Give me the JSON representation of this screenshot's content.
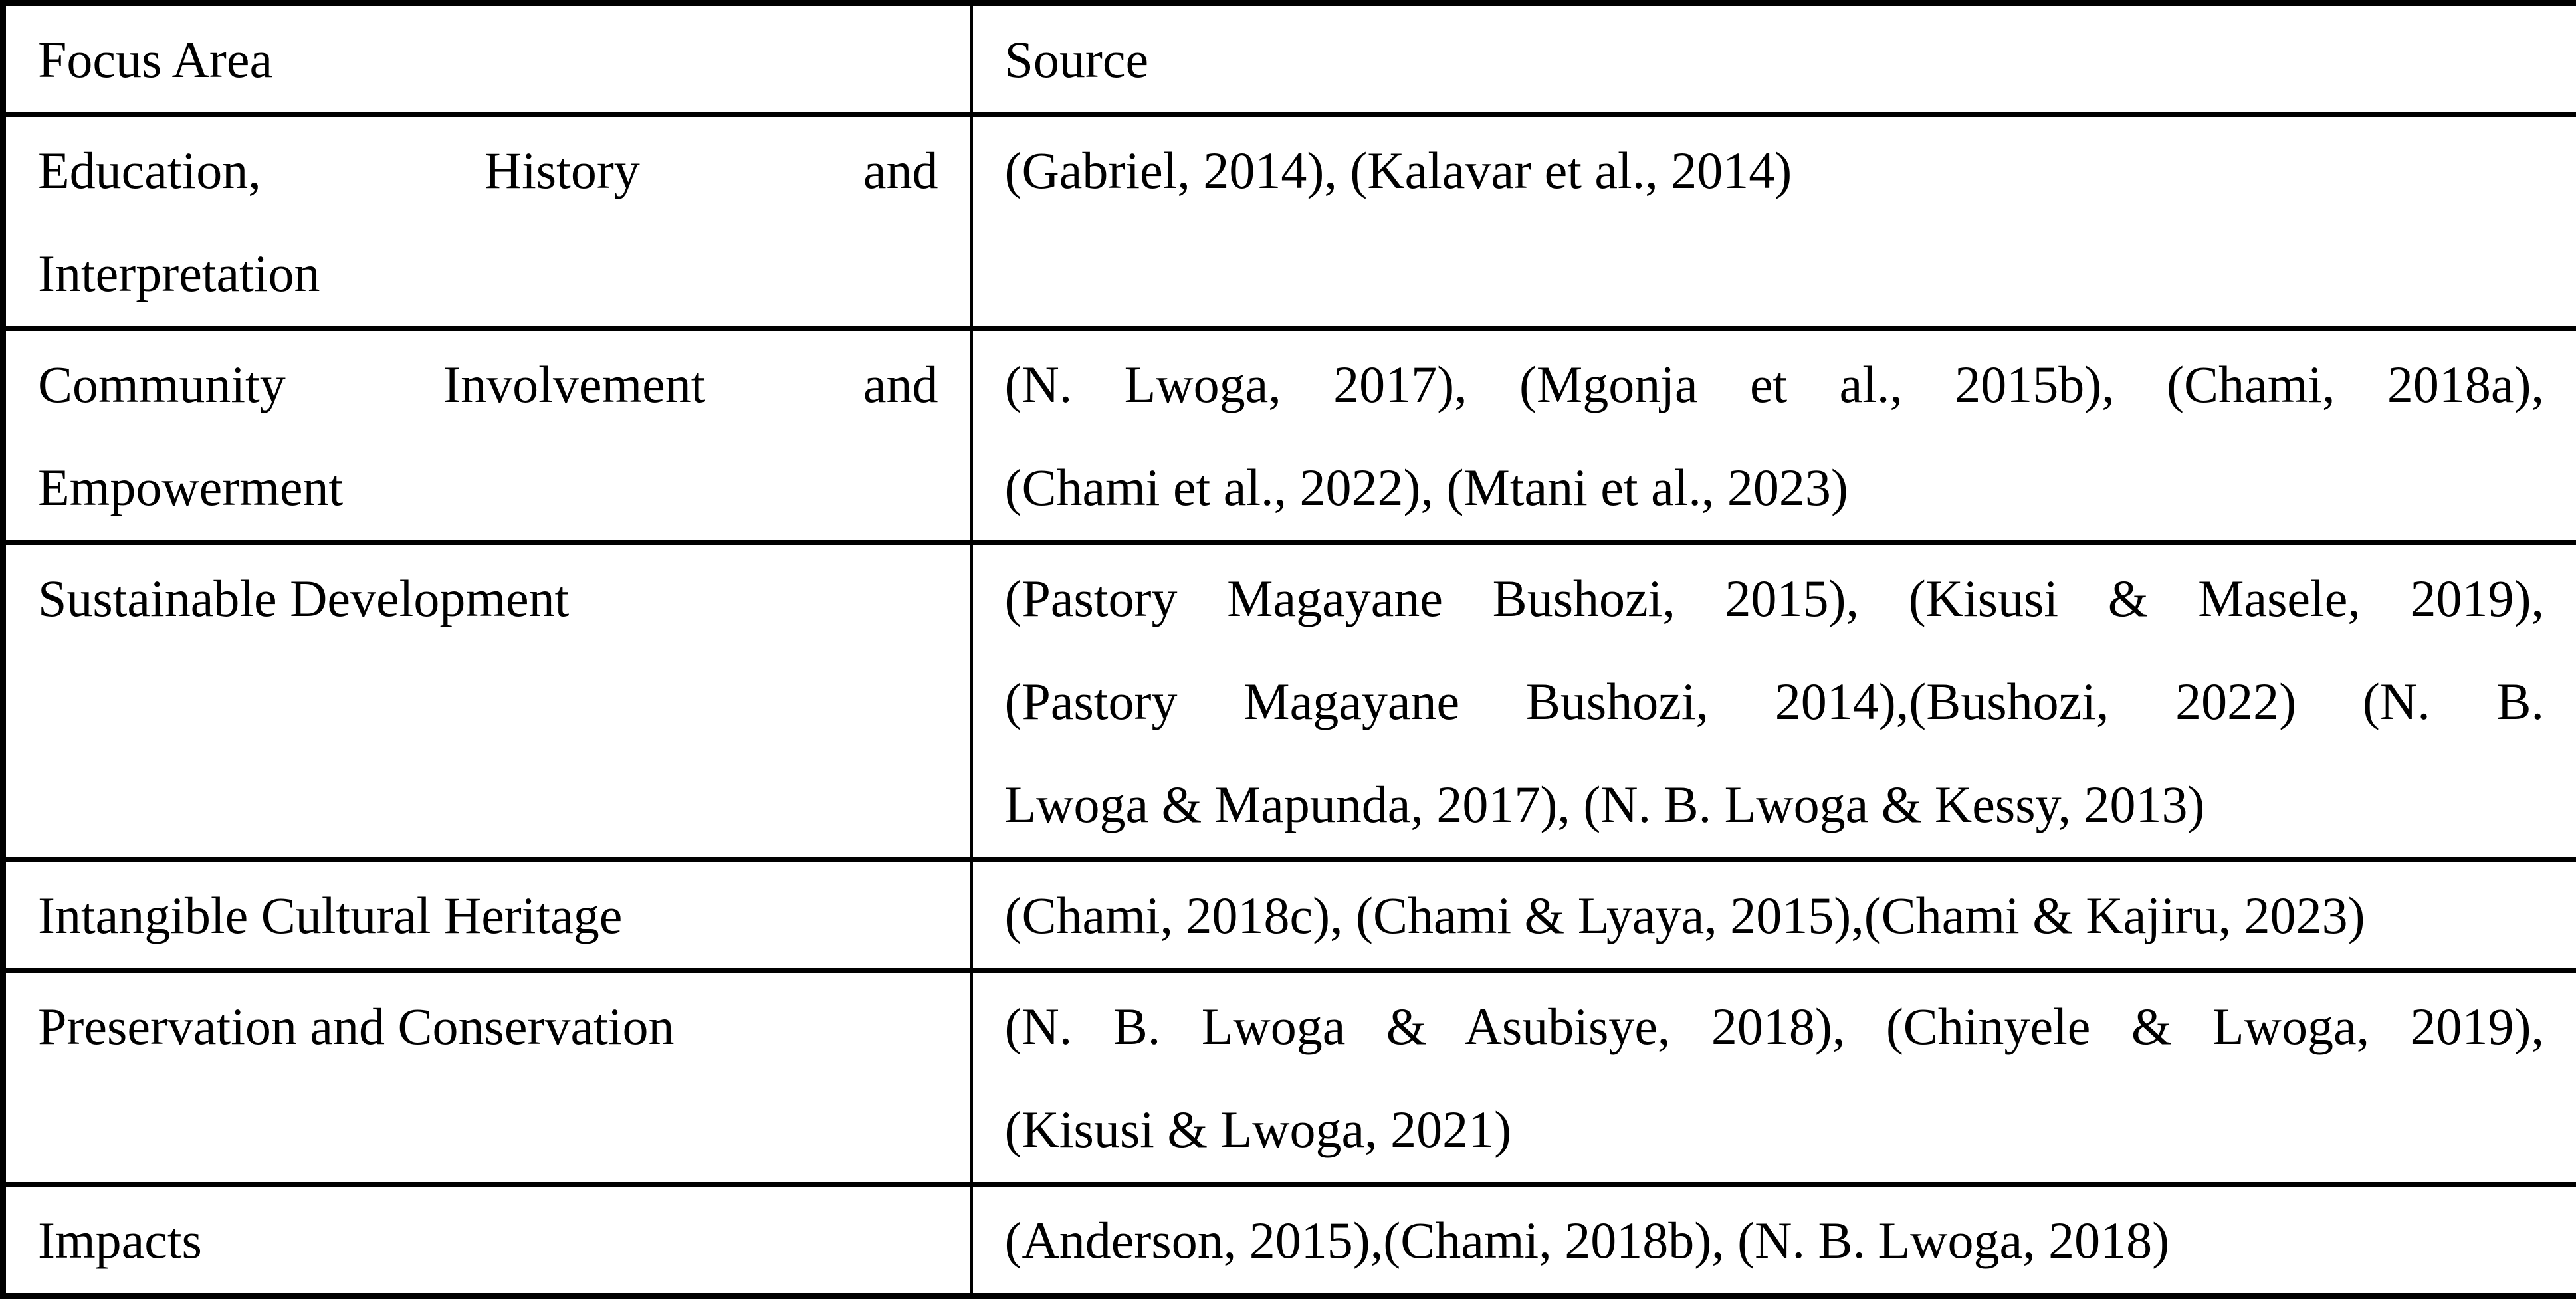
{
  "page": {
    "background_color": "#ffffff",
    "text_color": "#000000",
    "border_color": "#000000"
  },
  "table": {
    "header": {
      "focus_area": "Focus Area",
      "source": "Source"
    },
    "rows": [
      {
        "focus_lines": [
          {
            "text": "Education, History and",
            "justify": true
          },
          {
            "text": "Interpretation",
            "justify": false
          }
        ],
        "source_lines": [
          {
            "text": "(Gabriel, 2014), (Kalavar et al., 2014)",
            "justify": false
          }
        ]
      },
      {
        "focus_lines": [
          {
            "text": "Community Involvement and",
            "justify": true
          },
          {
            "text": "Empowerment",
            "justify": false
          }
        ],
        "source_lines": [
          {
            "text": "(N. Lwoga, 2017), (Mgonja et al., 2015b), (Chami, 2018a),",
            "justify": true
          },
          {
            "text": "(Chami et al., 2022), (Mtani et al., 2023)",
            "justify": false
          }
        ]
      },
      {
        "focus_lines": [
          {
            "text": "Sustainable Development",
            "justify": false
          }
        ],
        "source_lines": [
          {
            "text": "(Pastory Magayane Bushozi, 2015), (Kisusi & Masele, 2019),",
            "justify": true
          },
          {
            "text": "(Pastory Magayane Bushozi, 2014),(Bushozi, 2022) (N. B.",
            "justify": true
          },
          {
            "text": "Lwoga & Mapunda, 2017), (N. B. Lwoga & Kessy, 2013)",
            "justify": false
          }
        ]
      },
      {
        "focus_lines": [
          {
            "text": "Intangible Cultural Heritage",
            "justify": false
          }
        ],
        "source_lines": [
          {
            "text": "(Chami, 2018c), (Chami & Lyaya, 2015),(Chami & Kajiru, 2023)",
            "justify": false
          }
        ]
      },
      {
        "focus_lines": [
          {
            "text": "Preservation and Conservation",
            "justify": false
          }
        ],
        "source_lines": [
          {
            "text": "(N. B. Lwoga & Asubisye, 2018), (Chinyele & Lwoga, 2019),",
            "justify": true
          },
          {
            "text": "(Kisusi & Lwoga, 2021)",
            "justify": false
          }
        ]
      },
      {
        "focus_lines": [
          {
            "text": "Impacts",
            "justify": false
          }
        ],
        "source_lines": [
          {
            "text": "(Anderson, 2015),(Chami, 2018b), (N. B. Lwoga, 2018)",
            "justify": false
          }
        ]
      }
    ]
  }
}
